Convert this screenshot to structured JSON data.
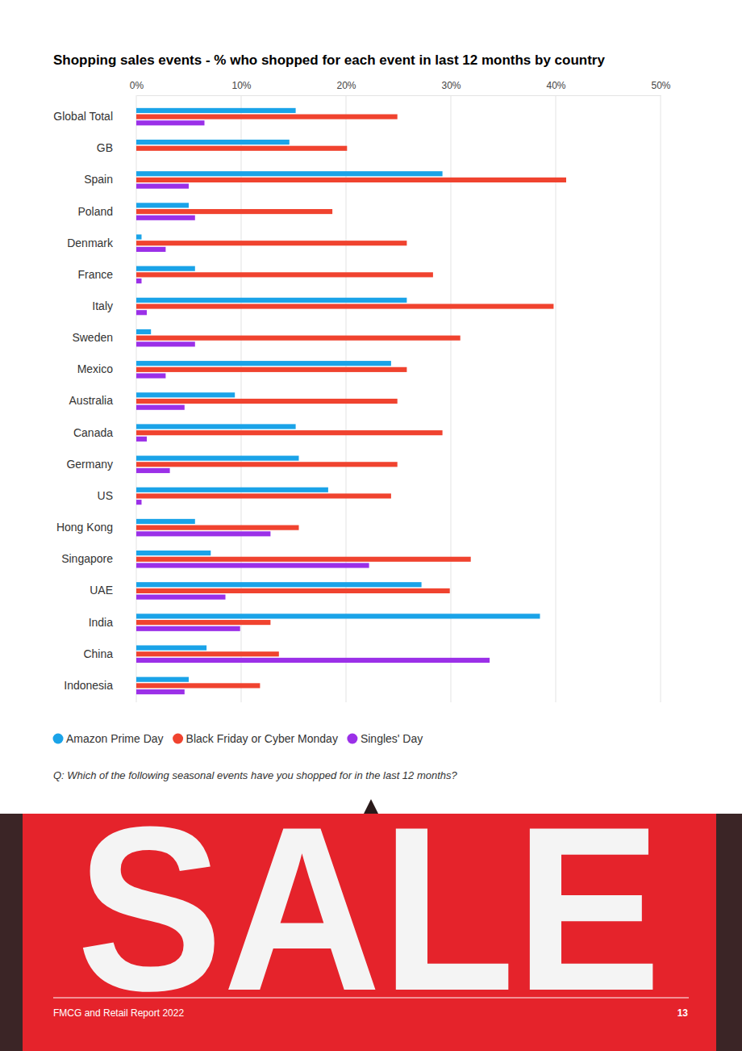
{
  "chart_data": {
    "type": "bar",
    "orientation": "horizontal",
    "title": "Shopping sales events - % who shopped for each event in last 12 months by country",
    "categories": [
      "Global Total",
      "GB",
      "Spain",
      "Poland",
      "Denmark",
      "France",
      "Italy",
      "Sweden",
      "Mexico",
      "Australia",
      "Canada",
      "Germany",
      "US",
      "Hong Kong",
      "Singapore",
      "UAE",
      "India",
      "China",
      "Indonesia"
    ],
    "series": [
      {
        "name": "Amazon Prime Day",
        "color": "#1aa3e8",
        "values": [
          15.2,
          14.6,
          29.2,
          5.0,
          0.5,
          5.6,
          25.8,
          1.4,
          24.3,
          9.4,
          15.2,
          15.5,
          18.3,
          5.6,
          7.1,
          27.2,
          38.5,
          6.7,
          5.0
        ]
      },
      {
        "name": "Black Friday or Cyber Monday",
        "color": "#f0432f",
        "values": [
          24.9,
          20.1,
          41.0,
          18.7,
          25.8,
          28.3,
          39.8,
          30.9,
          25.8,
          24.9,
          29.2,
          24.9,
          24.3,
          15.5,
          31.9,
          29.9,
          12.8,
          13.6,
          11.8
        ]
      },
      {
        "name": "Singles' Day",
        "color": "#9b30e8",
        "values": [
          6.5,
          null,
          5.0,
          5.6,
          2.8,
          0.5,
          1.0,
          5.6,
          2.8,
          4.6,
          1.0,
          3.2,
          0.5,
          12.8,
          22.2,
          8.5,
          9.9,
          33.7,
          4.6
        ]
      }
    ],
    "xlim": [
      0,
      50
    ],
    "xticks": [
      {
        "value": 0,
        "label": "0%"
      },
      {
        "value": 10,
        "label": "10%"
      },
      {
        "value": 20,
        "label": "20%"
      },
      {
        "value": 30,
        "label": "30%"
      },
      {
        "value": 40,
        "label": "40%"
      },
      {
        "value": 50,
        "label": "50%"
      }
    ],
    "grid": true,
    "legend": "bottom"
  },
  "page": {
    "question": "Q: Which of the following seasonal events have you shopped for in the last 12 months?",
    "banner_text": "SALE",
    "footer_left": "FMCG and Retail Report 2022",
    "page_number": "13"
  }
}
